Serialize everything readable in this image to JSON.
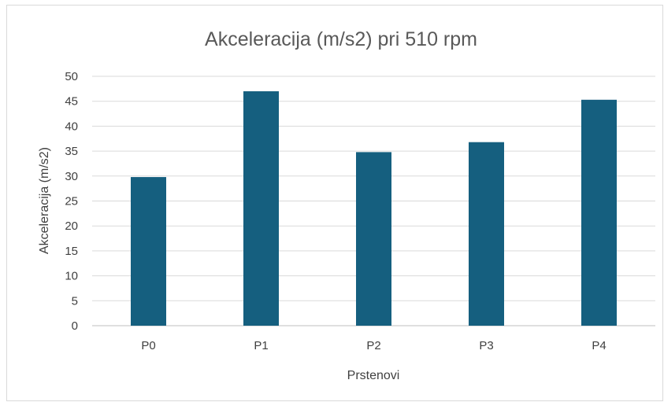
{
  "chart_data": {
    "type": "bar",
    "title": "Akceleracija (m/s2) pri 510 rpm",
    "xlabel": "Prstenovi",
    "ylabel": "Akceleracija (m/s2)",
    "categories": [
      "P0",
      "P1",
      "P2",
      "P3",
      "P4"
    ],
    "values": [
      29.8,
      47.0,
      34.8,
      36.8,
      45.3
    ],
    "ylim": [
      0,
      50
    ],
    "yticks": [
      0,
      5,
      10,
      15,
      20,
      25,
      30,
      35,
      40,
      45,
      50
    ],
    "grid": true,
    "legend": "none",
    "bar_color": "#155f7f"
  }
}
